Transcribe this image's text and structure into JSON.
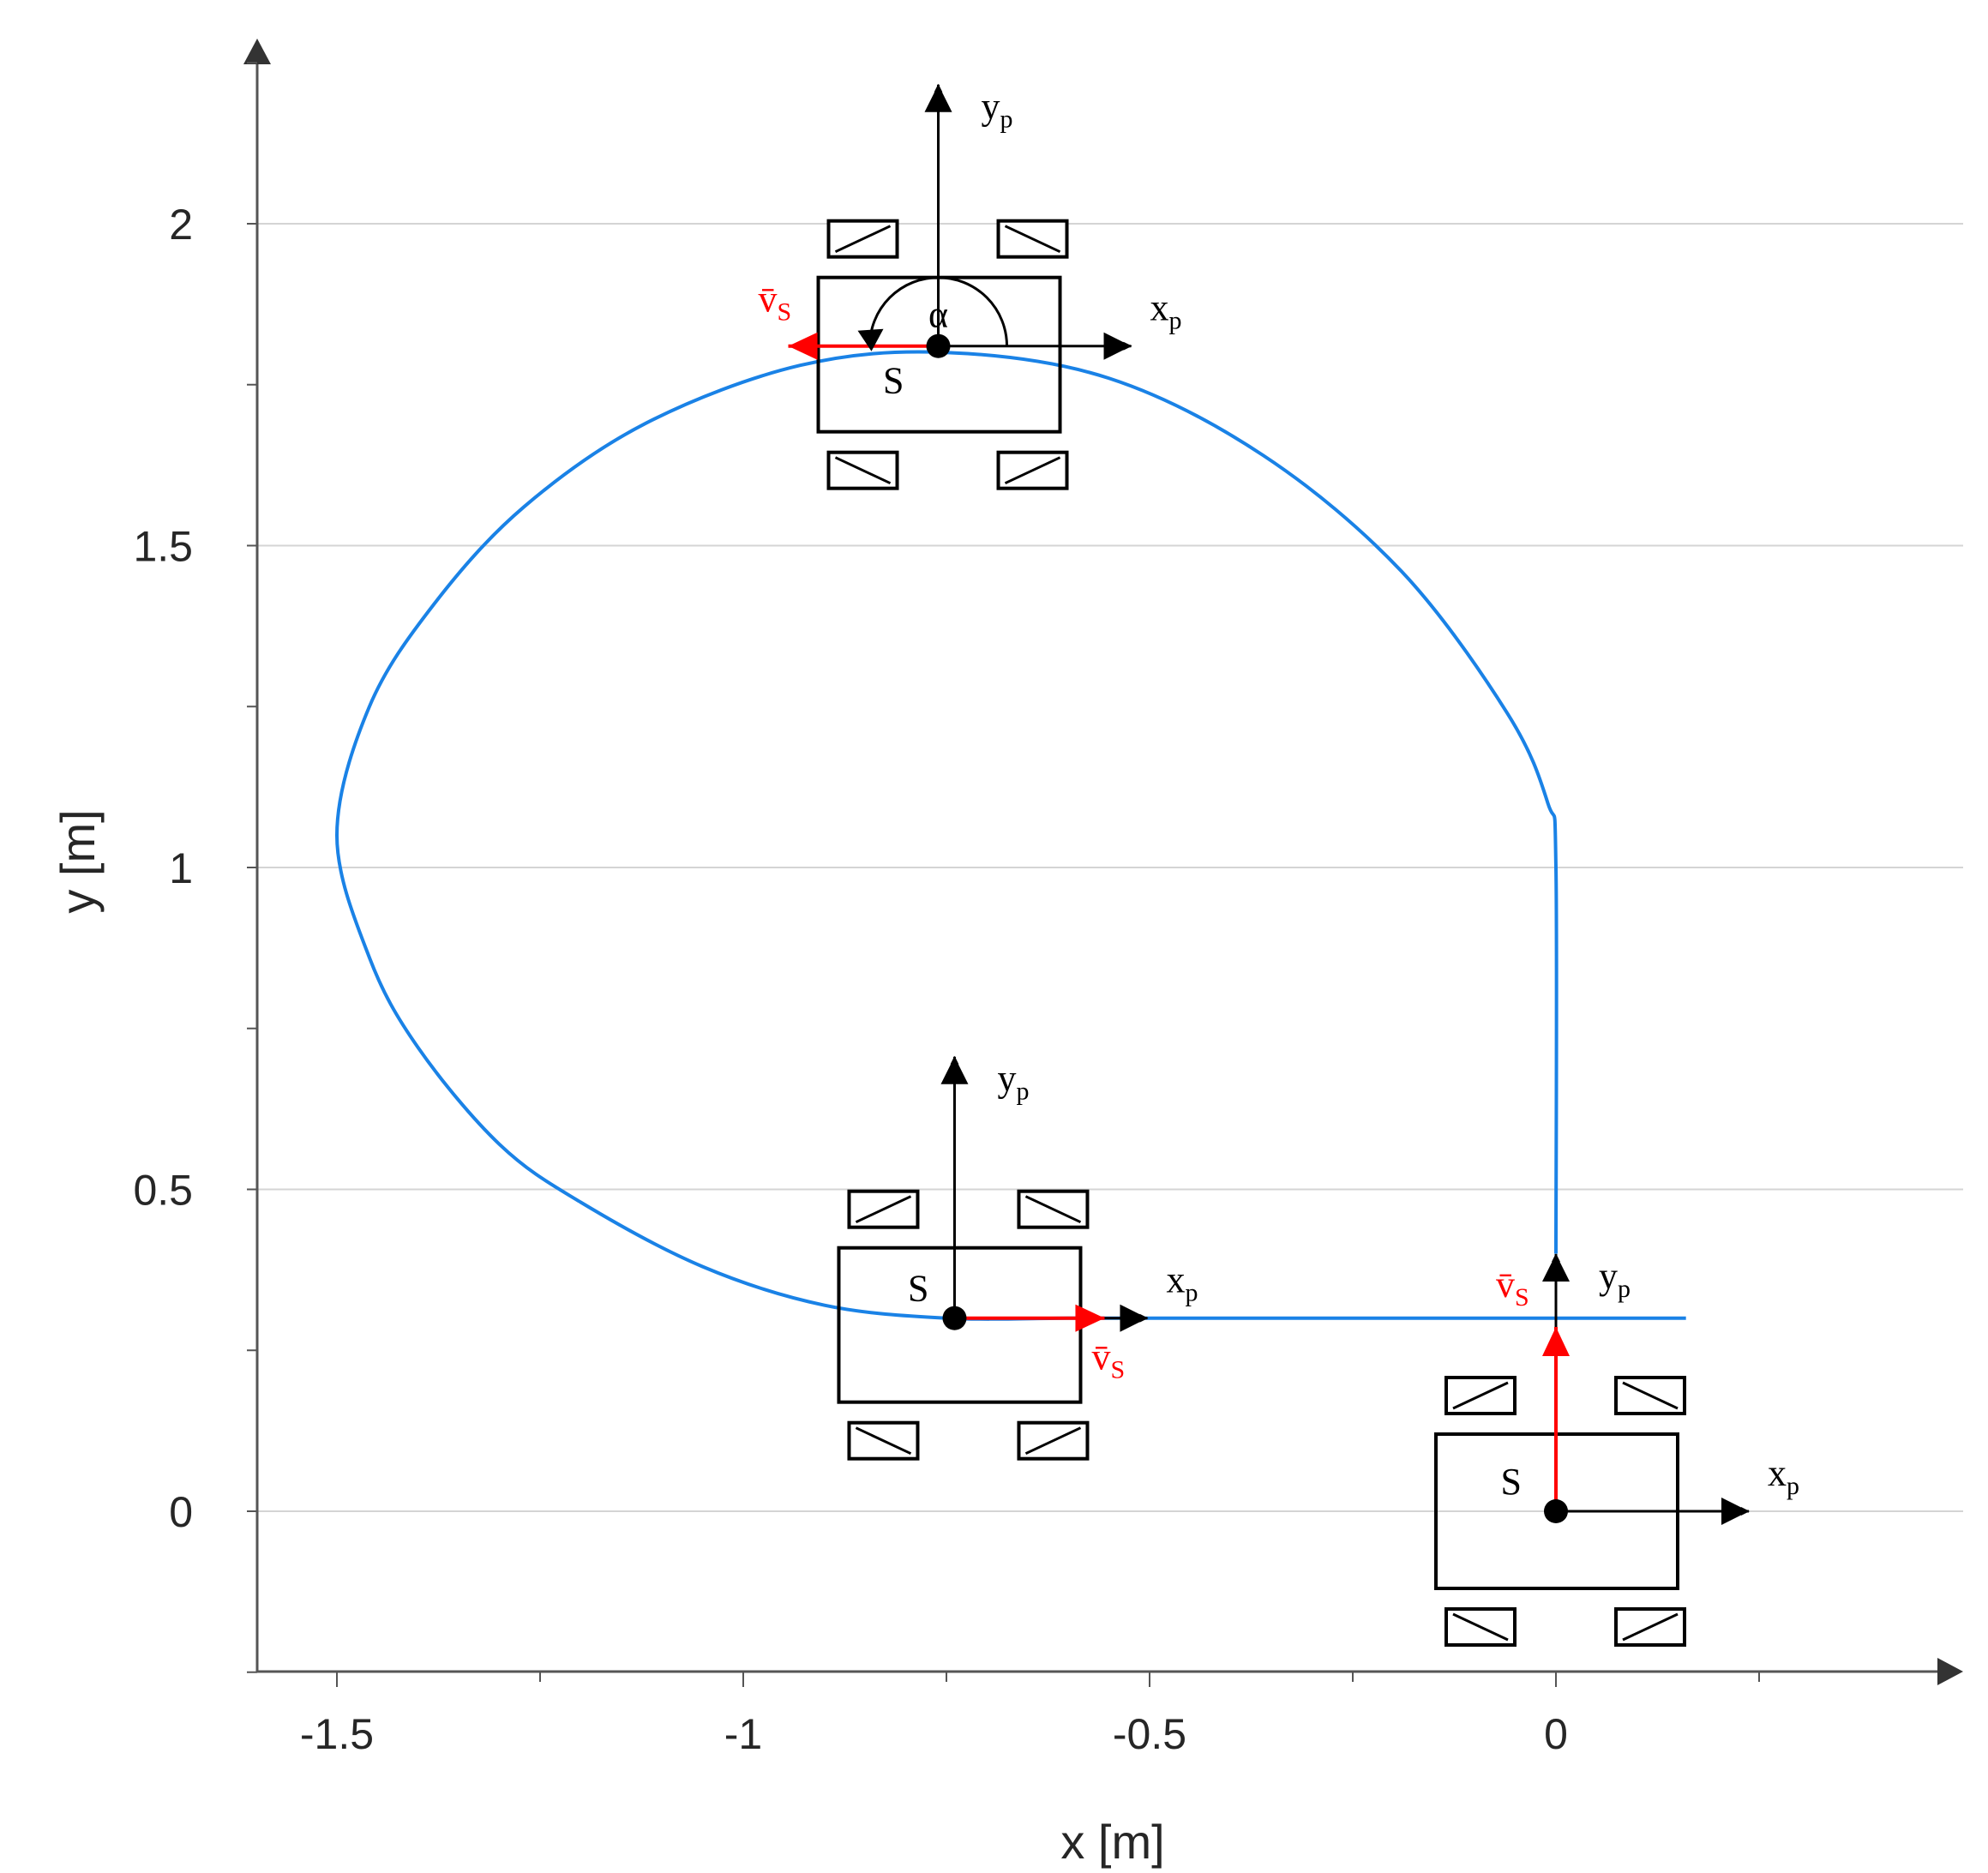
{
  "chart_data": {
    "type": "line",
    "title": "",
    "xlabel": "x [m]",
    "ylabel": "y [m]",
    "xlim": [
      -1.6,
      0.45
    ],
    "ylim": [
      -0.25,
      2.3
    ],
    "x_ticks": [
      -1.5,
      -1,
      -0.5,
      0
    ],
    "x_tick_labels": [
      "-1.5",
      "-1",
      "-0.5",
      "0"
    ],
    "y_ticks": [
      0,
      0.5,
      1,
      1.5,
      2
    ],
    "y_tick_labels": [
      "0",
      "0.5",
      "1",
      "1.5",
      "2"
    ],
    "grid": {
      "horizontal": true,
      "vertical": false
    },
    "colors": {
      "trajectory": "#1a82e6",
      "velocity": "#ff0000",
      "grid": "#d4d4d4",
      "axis": "#555555",
      "vehicle": "#000000"
    },
    "trajectory": {
      "x": [
        0.16,
        0.0,
        -0.1,
        -0.2,
        -0.3,
        -0.4,
        -0.5,
        -0.6,
        -0.75,
        -0.9,
        -1.05,
        -1.2,
        -1.3,
        -1.4,
        -1.46,
        -1.5,
        -1.46,
        -1.38,
        -1.27,
        -1.12,
        -0.93,
        -0.75,
        -0.55,
        -0.36,
        -0.19,
        -0.06,
        -0.01,
        0.0,
        0.0
      ],
      "y": [
        0.3,
        0.3,
        0.3,
        0.3,
        0.3,
        0.3,
        0.3,
        0.3,
        0.3,
        0.32,
        0.38,
        0.48,
        0.57,
        0.72,
        0.86,
        1.05,
        1.25,
        1.41,
        1.56,
        1.69,
        1.78,
        1.8,
        1.76,
        1.64,
        1.46,
        1.24,
        1.1,
        1.0,
        0.4
      ]
    },
    "vehicles": [
      {
        "x": 0.0,
        "y": 0.0,
        "heading_deg": 90,
        "velocity_dir": "up",
        "s_label": "S",
        "xp_label": "x",
        "xp_sub": "p",
        "yp_label": "y",
        "yp_sub": "p",
        "v_label": "v̄",
        "v_sub": "S"
      },
      {
        "x": -0.74,
        "y": 0.3,
        "heading_deg": 0,
        "velocity_dir": "right",
        "s_label": "S",
        "xp_label": "x",
        "xp_sub": "p",
        "yp_label": "y",
        "yp_sub": "p",
        "v_label": "v̄",
        "v_sub": "S"
      },
      {
        "x": -0.76,
        "y": 1.81,
        "heading_deg": 180,
        "velocity_dir": "left",
        "s_label": "S",
        "xp_label": "x",
        "xp_sub": "p",
        "yp_label": "y",
        "yp_sub": "p",
        "v_label": "v̄",
        "v_sub": "S",
        "angle_label": "α"
      }
    ]
  }
}
